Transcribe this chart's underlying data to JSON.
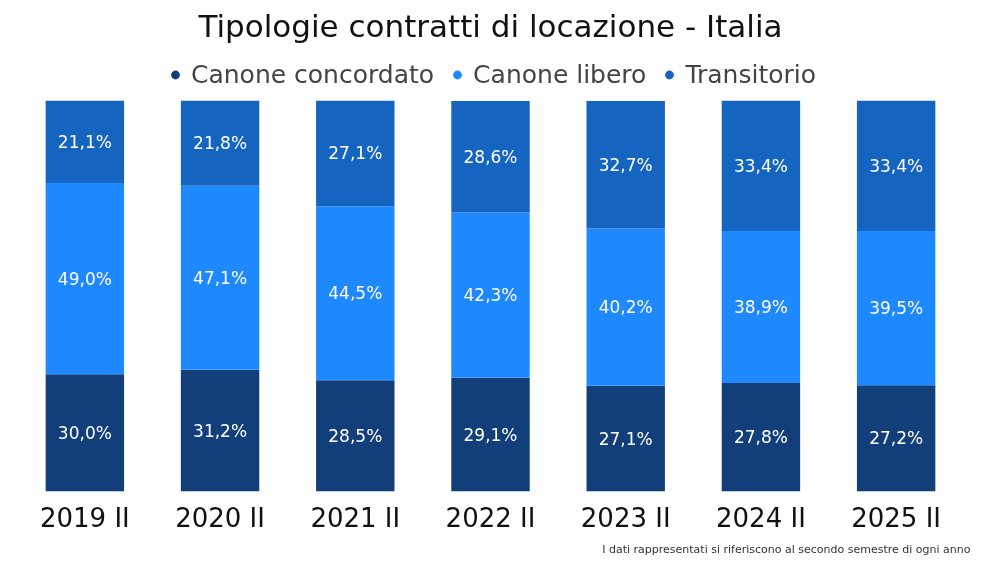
{
  "chart_data": {
    "type": "bar",
    "stacked": true,
    "title": "Tipologie contratti di locazione - Italia",
    "categories": [
      "2019 II",
      "2020 II",
      "2021 II",
      "2022 II",
      "2023 II",
      "2024 II",
      "2025 II"
    ],
    "series": [
      {
        "name": "Canone concordato",
        "color": "#123f7a",
        "values": [
          30.0,
          31.2,
          28.5,
          29.1,
          27.1,
          27.8,
          27.2
        ],
        "value_labels": [
          "30,0%",
          "31,2%",
          "28,5%",
          "29,1%",
          "27,1%",
          "27,8%",
          "27,2%"
        ]
      },
      {
        "name": "Canone libero",
        "color": "#1e88ff",
        "values": [
          49.0,
          47.1,
          44.5,
          42.3,
          40.2,
          38.9,
          39.5
        ],
        "value_labels": [
          "49,0%",
          "47,1%",
          "44,5%",
          "42,3%",
          "40,2%",
          "38,9%",
          "39,5%"
        ]
      },
      {
        "name": "Transitorio",
        "color": "#1565c0",
        "values": [
          21.1,
          21.8,
          27.1,
          28.6,
          32.7,
          33.4,
          33.4
        ],
        "value_labels": [
          "21,1%",
          "21,8%",
          "27,1%",
          "28,6%",
          "32,7%",
          "33,4%",
          "33,4%"
        ]
      }
    ],
    "legend": "top",
    "grid": false,
    "annotations": [
      "I dati rappresentati si riferiscono al secondo semestre di ogni anno"
    ]
  }
}
